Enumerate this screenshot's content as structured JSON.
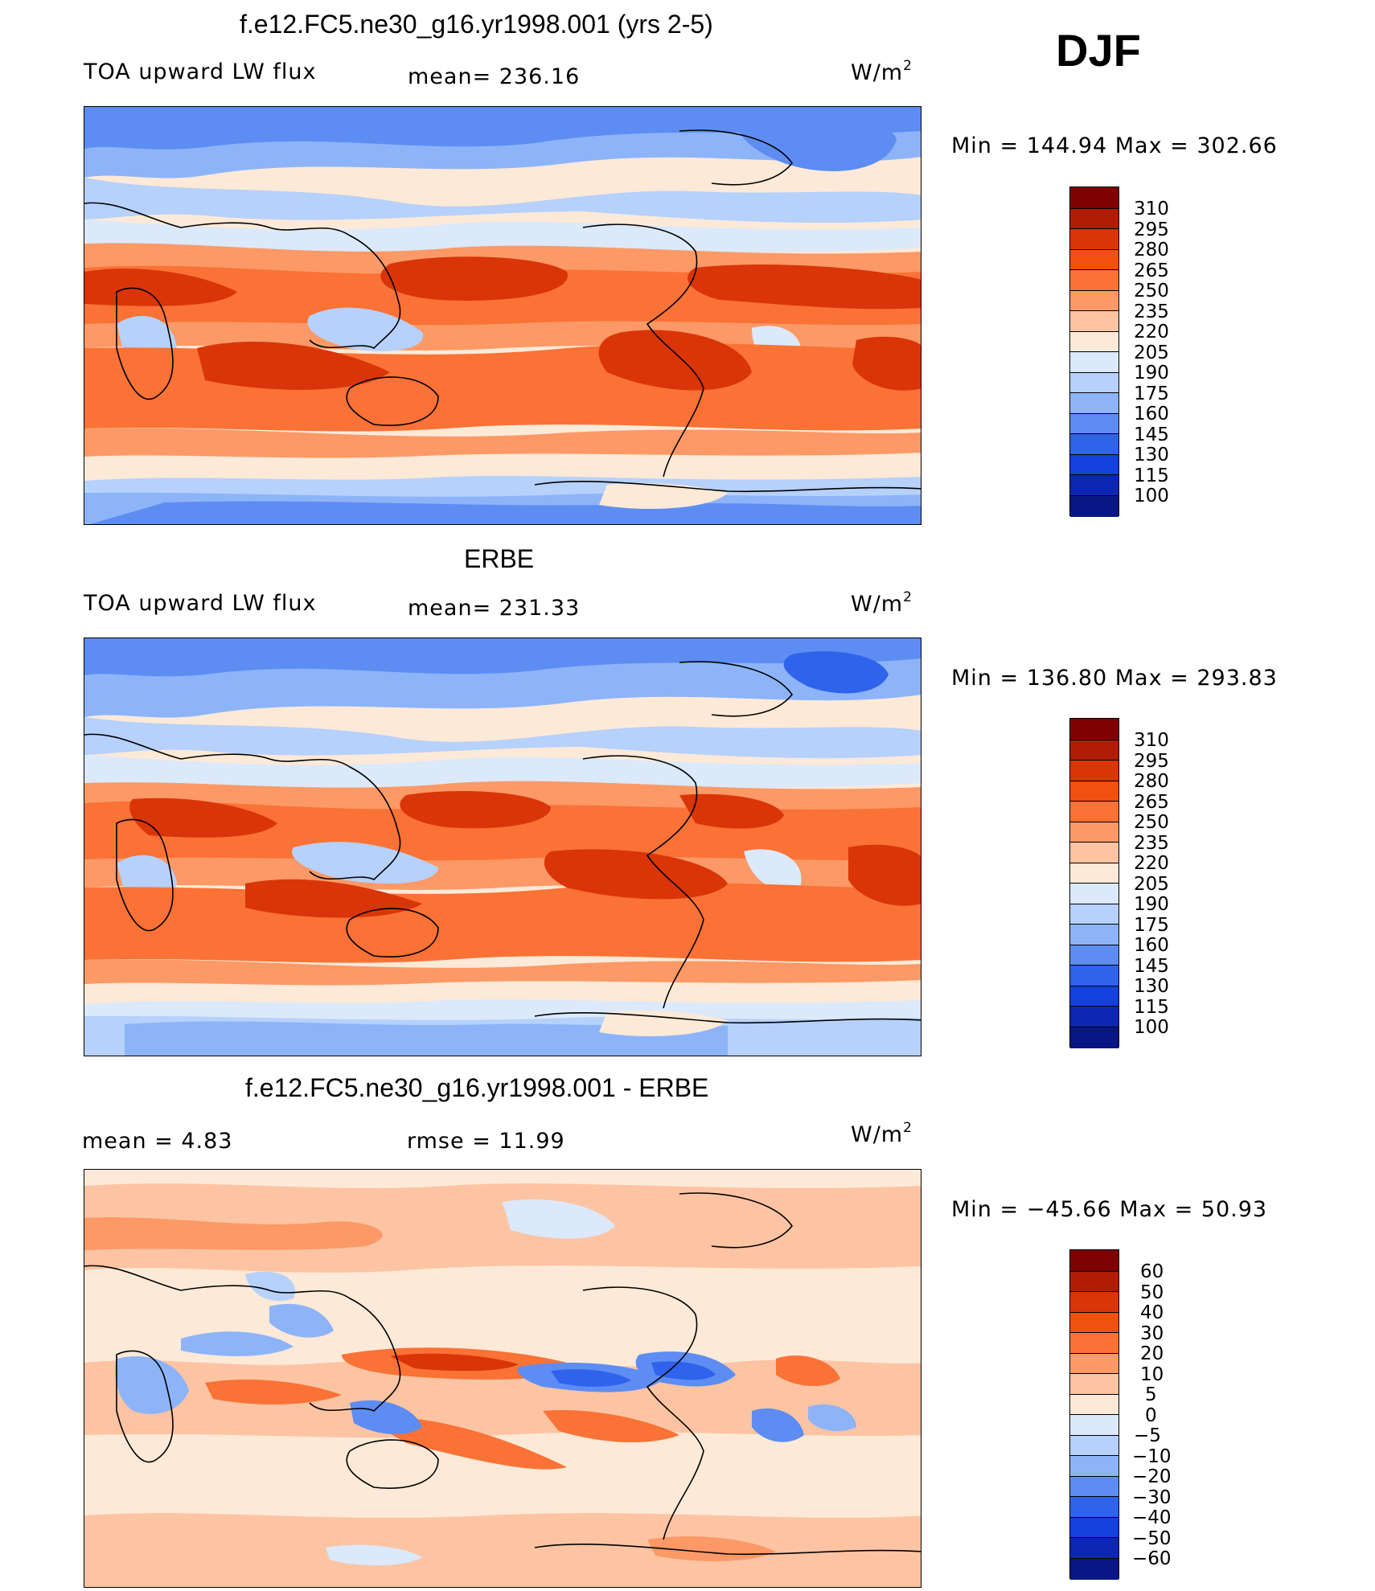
{
  "season": "DJF",
  "panels": [
    {
      "id": "model",
      "title": "f.e12.FC5.ne30_g16.yr1998.001 (yrs 2-5)",
      "left_label": "TOA upward LW flux",
      "center_label": "mean= 236.16",
      "units": "W/m",
      "units_exp": "2",
      "minmax": "Min  =  144.94  Max  =  302.66",
      "colorbar_ticks": [
        "310",
        "295",
        "280",
        "265",
        "250",
        "235",
        "220",
        "205",
        "190",
        "175",
        "160",
        "145",
        "130",
        "115",
        "100"
      ]
    },
    {
      "id": "obs",
      "title": "ERBE",
      "left_label": "TOA upward LW flux",
      "center_label": "mean= 231.33",
      "units": "W/m",
      "units_exp": "2",
      "minmax": "Min  =  136.80  Max  =  293.83",
      "colorbar_ticks": [
        "310",
        "295",
        "280",
        "265",
        "250",
        "235",
        "220",
        "205",
        "190",
        "175",
        "160",
        "145",
        "130",
        "115",
        "100"
      ]
    },
    {
      "id": "diff",
      "title": "f.e12.FC5.ne30_g16.yr1998.001 - ERBE",
      "left_label": "mean =     4.83",
      "center_label": "rmse  =    11.99",
      "units": "W/m",
      "units_exp": "2",
      "minmax": "Min  =  −45.66  Max  =    50.93",
      "colorbar_ticks": [
        "60",
        "50",
        "40",
        "30",
        "20",
        "10",
        "5",
        "0",
        "−5",
        "−10",
        "−20",
        "−30",
        "−40",
        "−50",
        "−60"
      ]
    }
  ],
  "colors": {
    "palette_warm_to_cool": [
      "#7f0000",
      "#b21c04",
      "#d93508",
      "#f2500f",
      "#fa7236",
      "#fc9966",
      "#fdc4a3",
      "#fde9d8",
      "#dbe9fb",
      "#b6d1fb",
      "#8db4f8",
      "#5d8df3",
      "#2f63eb",
      "#1440dd",
      "#0b27b4",
      "#081783"
    ]
  }
}
